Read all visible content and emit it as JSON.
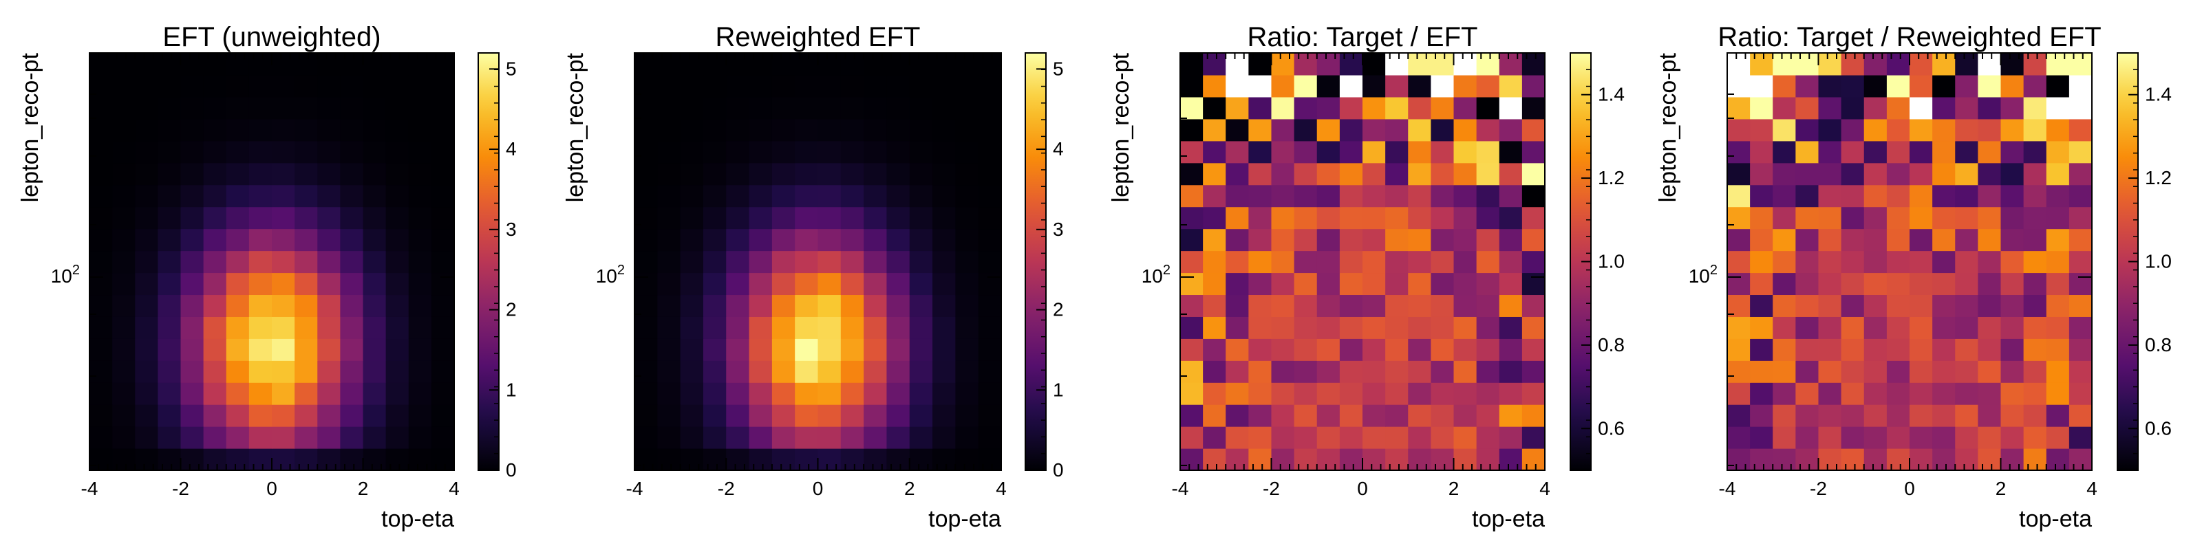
{
  "chart_data": [
    {
      "type": "heatmap",
      "title": "EFT (unweighted)",
      "xlabel": "top-eta",
      "ylabel": "lepton_reco-pt",
      "xlim": [
        -4,
        4
      ],
      "x_ticks": [
        "-4",
        "-2",
        "0",
        "2",
        "4"
      ],
      "y_scale": "log",
      "y_tick_label": "10^2",
      "colormap": "inferno",
      "colorbar_range": [
        0,
        5.2
      ],
      "colorbar_ticks": [
        "0",
        "1",
        "2",
        "3",
        "4",
        "5"
      ],
      "grid_shape": [
        19,
        16
      ],
      "values_description": "",
      "profile": "peak"
    },
    {
      "type": "heatmap",
      "title": "Reweighted EFT",
      "xlabel": "top-eta",
      "ylabel": "lepton_reco-pt",
      "xlim": [
        -4,
        4
      ],
      "x_ticks": [
        "-4",
        "-2",
        "0",
        "2",
        "4"
      ],
      "y_scale": "log",
      "y_tick_label": "10^2",
      "colormap": "inferno",
      "colorbar_range": [
        0,
        5.2
      ],
      "colorbar_ticks": [
        "0",
        "1",
        "2",
        "3",
        "4",
        "5"
      ],
      "grid_shape": [
        19,
        16
      ],
      "profile": "peak"
    },
    {
      "type": "heatmap",
      "title": "Ratio: Target / EFT",
      "xlabel": "top-eta",
      "ylabel": "lepton_reco-pt",
      "xlim": [
        -4,
        4
      ],
      "x_ticks": [
        "-4",
        "-2",
        "0",
        "2",
        "4"
      ],
      "y_scale": "log",
      "y_tick_label": "10^2",
      "colormap": "inferno",
      "colorbar_range": [
        0.5,
        1.5
      ],
      "colorbar_ticks": [
        "0.6",
        "0.8",
        "1.0",
        "1.2",
        "1.4"
      ],
      "grid_shape": [
        19,
        16
      ],
      "profile": "ratio"
    },
    {
      "type": "heatmap",
      "title": "Ratio: Target / Reweighted EFT",
      "xlabel": "top-eta",
      "ylabel": "lepton_reco-pt",
      "xlim": [
        -4,
        4
      ],
      "x_ticks": [
        "-4",
        "-2",
        "0",
        "2",
        "4"
      ],
      "y_scale": "log",
      "y_tick_label": "10^2",
      "colormap": "inferno",
      "colorbar_range": [
        0.5,
        1.5
      ],
      "colorbar_ticks": [
        "0.6",
        "0.8",
        "1.0",
        "1.2",
        "1.4"
      ],
      "grid_shape": [
        19,
        16
      ],
      "profile": "ratio"
    }
  ]
}
